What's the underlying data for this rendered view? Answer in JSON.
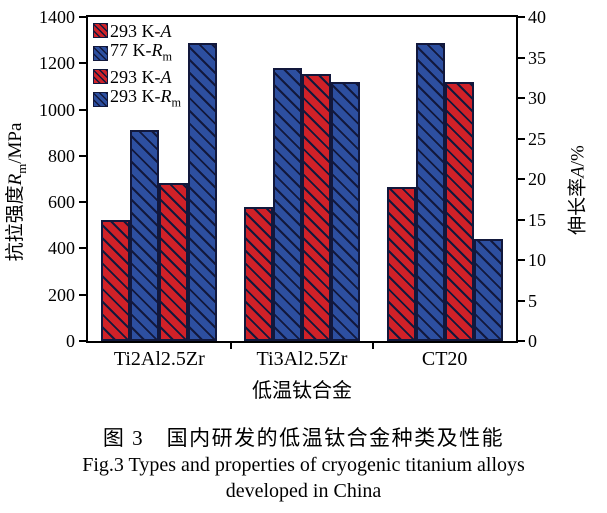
{
  "chart_data": {
    "type": "bar",
    "categories": [
      "Ti2Al2.5Zr",
      "Ti3Al2.5Zr",
      "CT20"
    ],
    "xlabel": "低温钛合金",
    "grid": false,
    "legend_position": "top-left-inside",
    "y_left_axis": {
      "label_cn": "抗拉强度",
      "symbol": "R",
      "symbol_sub": "m",
      "unit": "/MPa",
      "min": 0,
      "max": 1400,
      "ticks": [
        0,
        200,
        400,
        600,
        800,
        1000,
        1200,
        1400
      ]
    },
    "y_right_axis": {
      "label_cn": "伸长率",
      "symbol": "A",
      "symbol_sub": "",
      "unit": "/%",
      "min": 0,
      "max": 40,
      "ticks": [
        0,
        5,
        10,
        15,
        20,
        25,
        30,
        35,
        40
      ]
    },
    "series": [
      {
        "legend_prefix": "293 K-",
        "legend_symbol": "A",
        "legend_symbol_sub": "",
        "axis": "right",
        "color_key": "red",
        "values": [
          15,
          16.5,
          19
        ]
      },
      {
        "legend_prefix": "77 K-",
        "legend_symbol": "R",
        "legend_symbol_sub": "m",
        "axis": "left",
        "color_key": "blue",
        "values": [
          910,
          1180,
          1290
        ]
      },
      {
        "legend_prefix": "293 K-",
        "legend_symbol": "A",
        "legend_symbol_sub": "",
        "axis": "right",
        "color_key": "red",
        "values": [
          19.5,
          33,
          32
        ]
      },
      {
        "legend_prefix": "293 K-",
        "legend_symbol": "R",
        "legend_symbol_sub": "m",
        "axis": "left",
        "color_key": "blue",
        "values": [
          1290,
          1120,
          440
        ]
      }
    ]
  },
  "colors": {
    "red": "#d02128",
    "blue": "#2d4fa0",
    "hatch": "#12183c",
    "axis": "#000000"
  },
  "caption": {
    "cn": "图 3　国内研发的低温钛合金种类及性能",
    "en_line1": "Fig.3 Types and properties of cryogenic titanium alloys",
    "en_line2": "developed in China"
  }
}
